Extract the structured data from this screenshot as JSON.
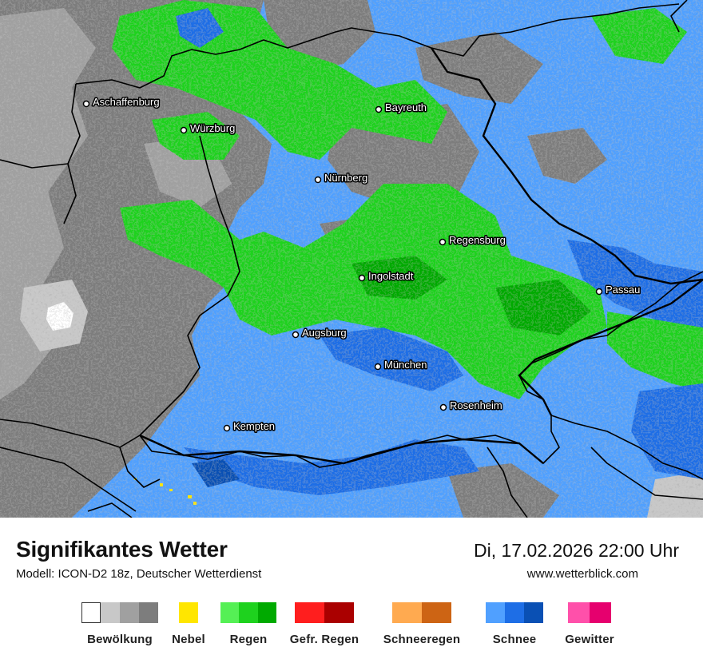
{
  "map": {
    "cities": [
      {
        "name": "Aschaffenburg"
      },
      {
        "name": "Würzburg"
      },
      {
        "name": "Bayreuth"
      },
      {
        "name": "Nürnberg"
      },
      {
        "name": "Regensburg"
      },
      {
        "name": "Ingolstadt"
      },
      {
        "name": "Passau"
      },
      {
        "name": "Augsburg"
      },
      {
        "name": "München"
      },
      {
        "name": "Rosenheim"
      },
      {
        "name": "Kempten"
      }
    ]
  },
  "header": {
    "title": "Signifikantes Wetter",
    "subtitle": "Modell: ICON-D2 18z, Deutscher Wetterdienst",
    "datetime": "Di, 17.02.2026 22:00 Uhr",
    "website": "www.wetterblick.com"
  },
  "legend": [
    {
      "label": "Bewölkung",
      "colors": [
        "#ffffff",
        "#c8c8c8",
        "#a0a0a0",
        "#7d7d7d"
      ]
    },
    {
      "label": "Nebel",
      "colors": [
        "#ffe600"
      ]
    },
    {
      "label": "Regen",
      "colors": [
        "#55f055",
        "#1ed21e",
        "#00aa00"
      ]
    },
    {
      "label": "Gefr. Regen",
      "colors": [
        "#ff1e1e",
        "#aa0000"
      ]
    },
    {
      "label": "Schneeregen",
      "colors": [
        "#ffaa50",
        "#cd6414"
      ]
    },
    {
      "label": "Schnee",
      "colors": [
        "#50a0ff",
        "#1e6ee6",
        "#0a50b4"
      ]
    },
    {
      "label": "Gewitter",
      "colors": [
        "#ff50aa",
        "#e6006e"
      ]
    }
  ]
}
